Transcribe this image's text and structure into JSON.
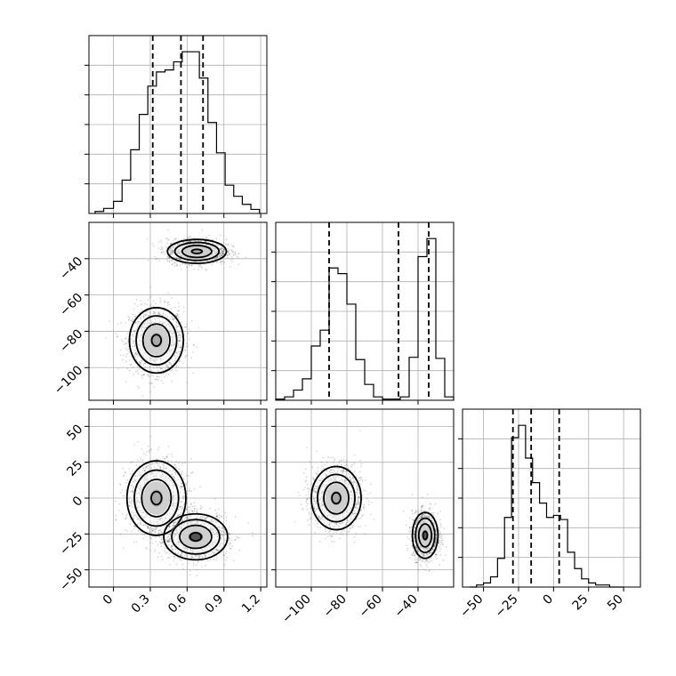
{
  "chart_data": [
    {
      "type": "histogram",
      "panel": "p1-hist",
      "xlim": [
        -0.2,
        1.25
      ],
      "xticks": [
        0.0,
        0.3,
        0.6,
        0.9,
        1.2
      ],
      "quantile_lines": [
        0.32,
        0.55,
        0.73
      ],
      "bin_edges": [
        -0.15,
        -0.08,
        0.0,
        0.07,
        0.14,
        0.21,
        0.28,
        0.35,
        0.42,
        0.49,
        0.56,
        0.63,
        0.7,
        0.77,
        0.84,
        0.91,
        0.98,
        1.05,
        1.12,
        1.19
      ],
      "counts": [
        2,
        5,
        12,
        33,
        63,
        98,
        126,
        140,
        142,
        150,
        160,
        160,
        134,
        90,
        60,
        28,
        17,
        9,
        4
      ]
    },
    {
      "type": "histogram",
      "panel": "p2-hist",
      "xlim": [
        -120,
        -20
      ],
      "xticks": [
        -100,
        -80,
        -60,
        -40
      ],
      "quantile_lines": [
        -90,
        -51,
        -34
      ],
      "bin_edges": [
        -120,
        -115,
        -110,
        -105,
        -100,
        -95,
        -90,
        -85,
        -80,
        -75,
        -70,
        -65,
        -60,
        -55,
        -50,
        -45,
        -40,
        -35,
        -30,
        -25,
        -20
      ],
      "counts": [
        1,
        3,
        9,
        19,
        48,
        62,
        117,
        112,
        85,
        36,
        14,
        3,
        1,
        1,
        3,
        38,
        127,
        143,
        37,
        3
      ]
    },
    {
      "type": "histogram",
      "panel": "p3-hist",
      "xlim": [
        -65,
        62
      ],
      "xticks": [
        -50,
        -25,
        0,
        25,
        50
      ],
      "quantile_lines": [
        -29,
        -16,
        4
      ],
      "bin_edges": [
        -60,
        -55,
        -50,
        -45,
        -40,
        -35,
        -30,
        -25,
        -20,
        -15,
        -10,
        -5,
        0,
        5,
        10,
        15,
        20,
        25,
        30,
        35,
        40,
        45,
        50
      ],
      "counts": [
        0,
        1,
        2,
        5,
        14,
        34,
        73,
        79,
        63,
        51,
        41,
        34,
        35,
        33,
        17,
        9,
        4,
        2,
        1,
        1,
        0,
        0
      ]
    },
    {
      "type": "scatter-density",
      "panel": "p1-vs-p2",
      "xlim": [
        -0.2,
        1.25
      ],
      "ylim": [
        -118,
        -20
      ],
      "yticks": [
        -100,
        -80,
        -60,
        -40
      ],
      "clusters": [
        {
          "center": [
            0.35,
            -85
          ],
          "spread": [
            0.11,
            9.0
          ]
        },
        {
          "center": [
            0.68,
            -36
          ],
          "spread": [
            0.12,
            3.3
          ]
        }
      ]
    },
    {
      "type": "scatter-density",
      "panel": "p1-vs-p3",
      "xlim": [
        -0.2,
        1.25
      ],
      "ylim": [
        -62,
        62
      ],
      "yticks": [
        -50,
        -25,
        0,
        25,
        50
      ],
      "clusters": [
        {
          "center": [
            0.35,
            0
          ],
          "spread": [
            0.12,
            13
          ]
        },
        {
          "center": [
            0.67,
            -27
          ],
          "spread": [
            0.13,
            8
          ]
        }
      ]
    },
    {
      "type": "scatter-density",
      "panel": "p2-vs-p3",
      "xlim": [
        -120,
        -20
      ],
      "ylim": [
        -62,
        62
      ],
      "clusters": [
        {
          "center": [
            -86,
            0
          ],
          "spread": [
            7,
            11
          ]
        },
        {
          "center": [
            -36,
            -26
          ],
          "spread": [
            3.6,
            8
          ]
        }
      ]
    }
  ]
}
